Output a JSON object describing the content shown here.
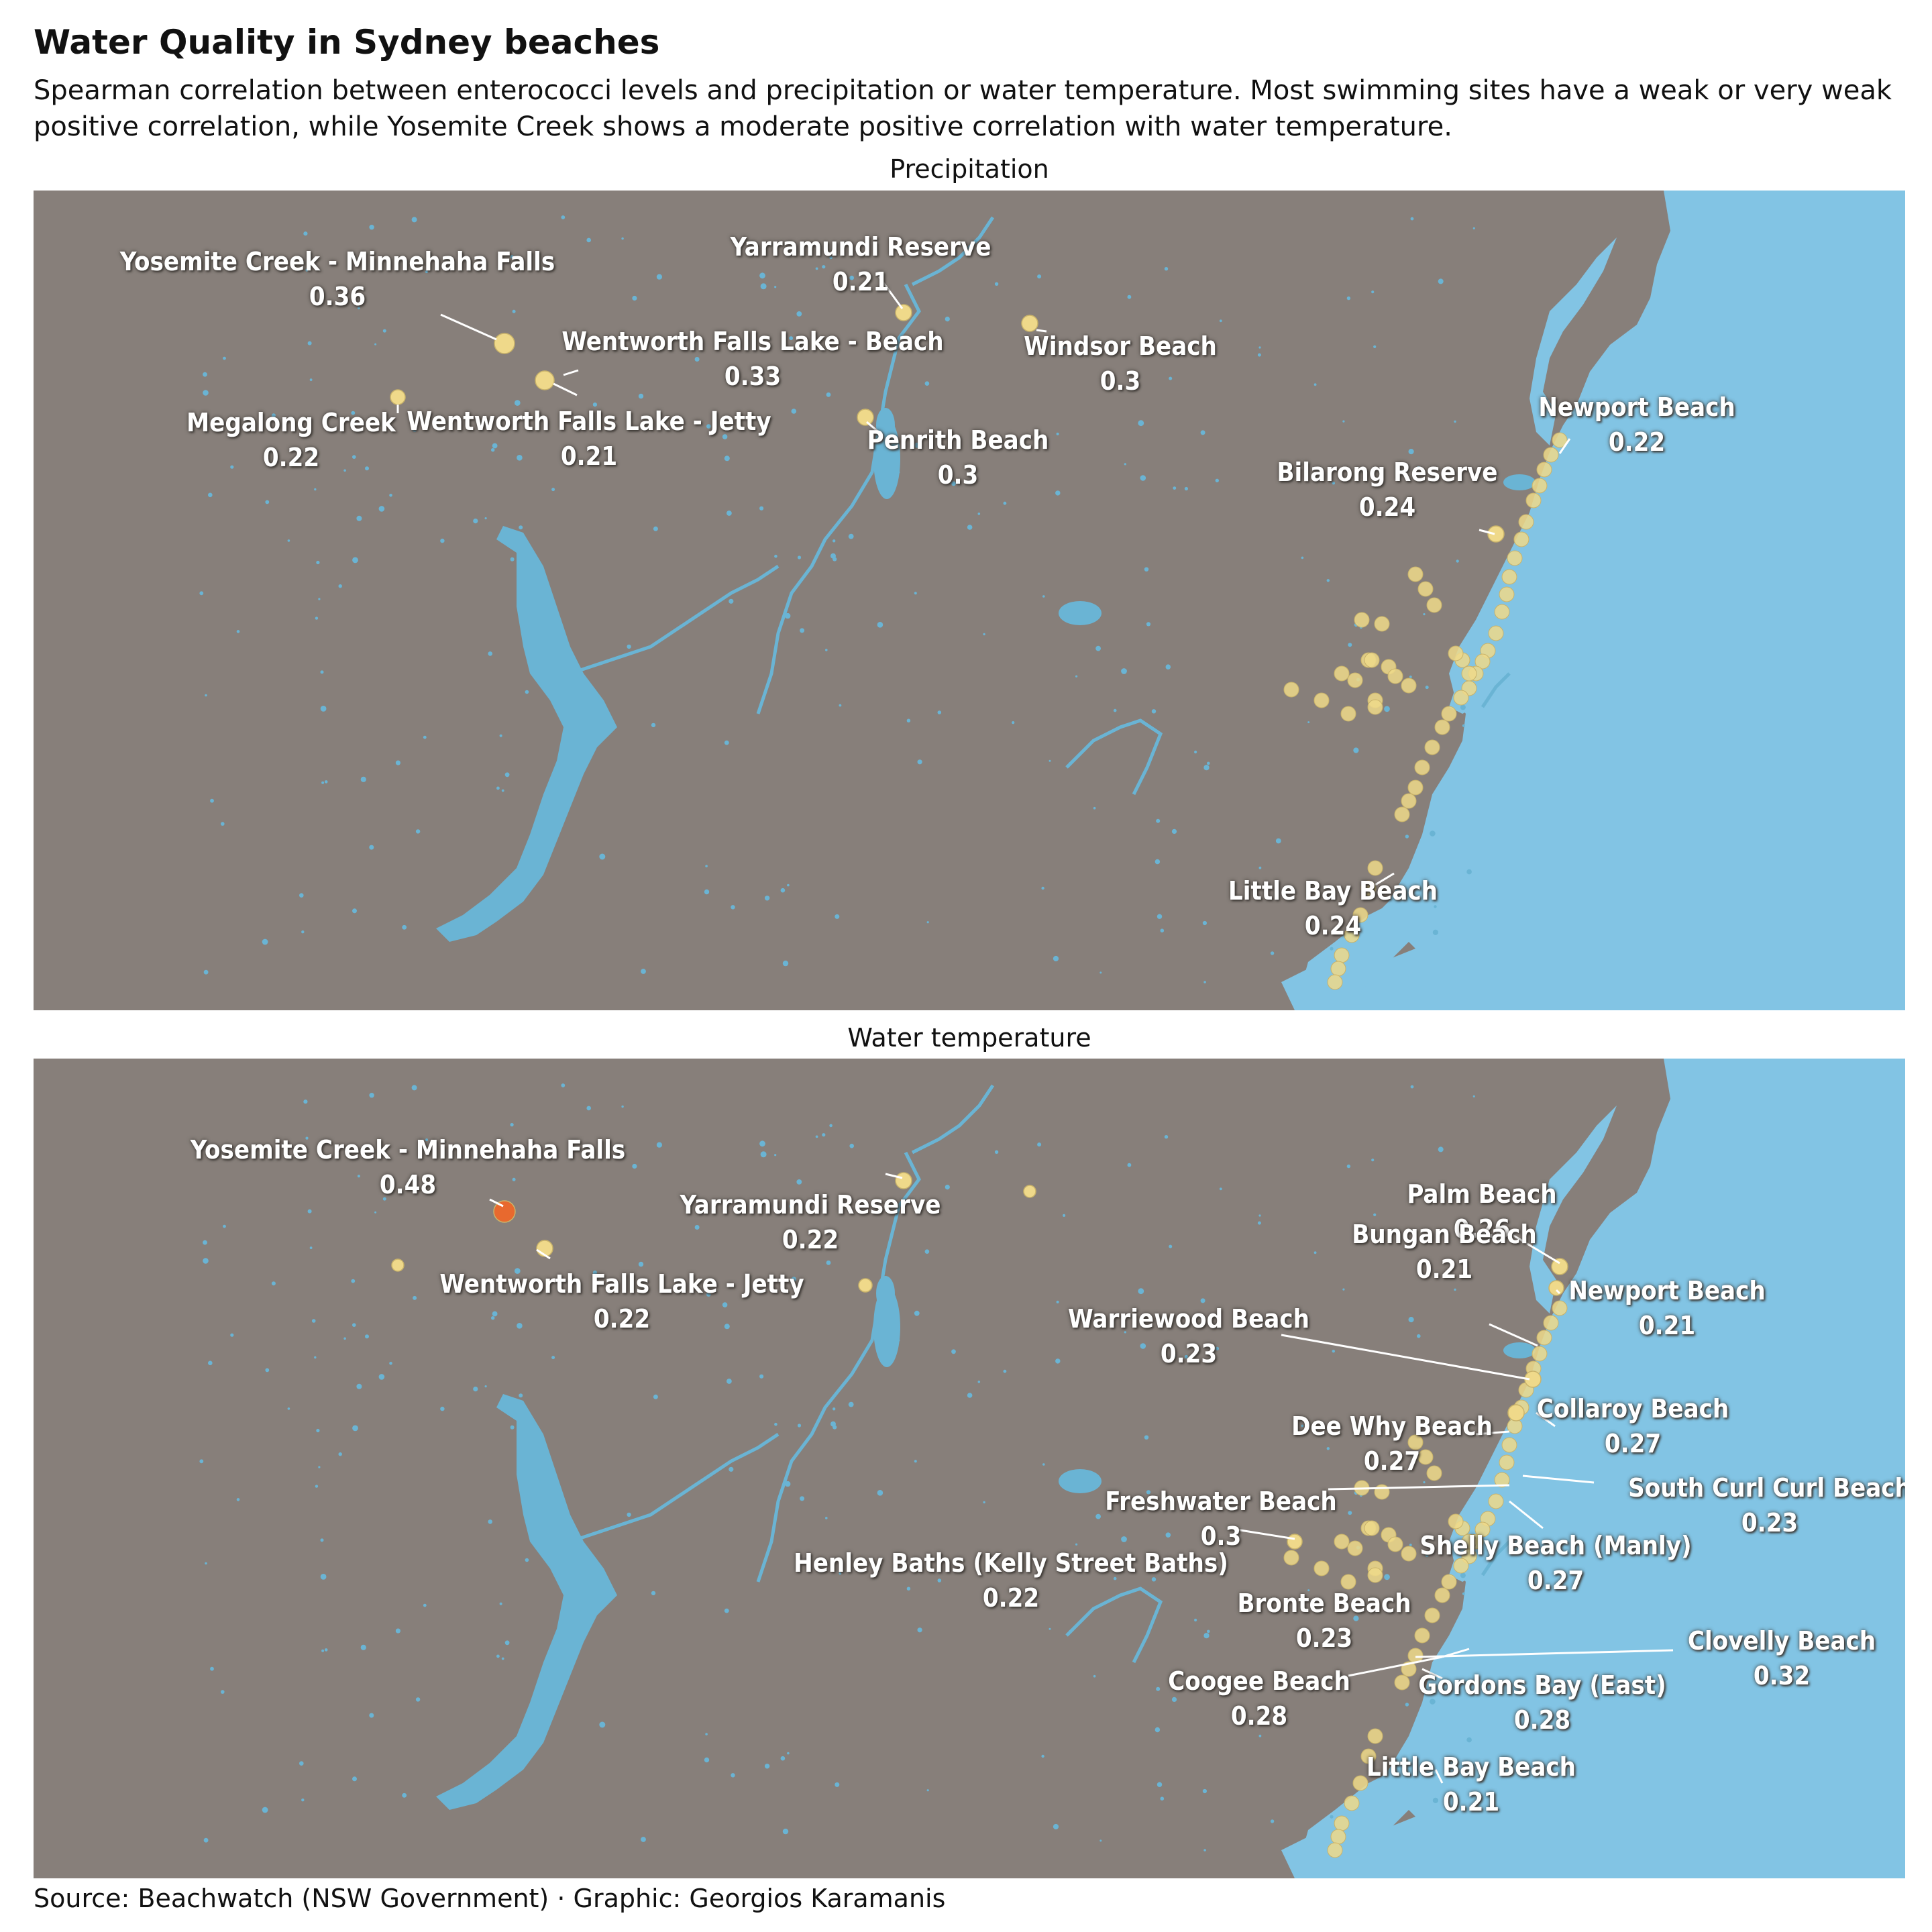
{
  "title": "Water Quality in Sydney beaches",
  "subtitle": "Spearman correlation between enterococci levels and precipitation or water temperature. Most swimming sites have a weak or very weak positive correlation, while Yosemite Creek shows a moderate positive correlation with water temperature.",
  "source": "Source: Beachwatch (NSW Government) · Graphic: Georgios Karamanis",
  "colors": {
    "land": "#877f7a",
    "water": "#82c4e4",
    "river": "#6ab4d4",
    "site": "#efd98a",
    "strong_site": "#e8692e",
    "label": "#ffffff"
  },
  "panels": [
    {
      "id": "precipitation",
      "title": "Precipitation",
      "labels": [
        {
          "name": "Yosemite Creek - Minnehaha Falls",
          "value": "0.36"
        },
        {
          "name": "Yarramundi Reserve",
          "value": "0.21"
        },
        {
          "name": "Wentworth Falls Lake - Beach",
          "value": "0.33"
        },
        {
          "name": "Windsor Beach",
          "value": "0.3"
        },
        {
          "name": "Megalong Creek",
          "value": "0.22"
        },
        {
          "name": "Wentworth Falls Lake - Jetty",
          "value": "0.21"
        },
        {
          "name": "Penrith Beach",
          "value": "0.3"
        },
        {
          "name": "Newport Beach",
          "value": "0.22"
        },
        {
          "name": "Bilarong Reserve",
          "value": "0.24"
        },
        {
          "name": "Little Bay Beach",
          "value": "0.24"
        }
      ]
    },
    {
      "id": "water-temperature",
      "title": "Water temperature",
      "labels": [
        {
          "name": "Yosemite Creek - Minnehaha Falls",
          "value": "0.48"
        },
        {
          "name": "Yarramundi Reserve",
          "value": "0.22"
        },
        {
          "name": "Wentworth Falls Lake - Jetty",
          "value": "0.22"
        },
        {
          "name": "Palm Beach",
          "value": "0.26"
        },
        {
          "name": "Bungan Beach",
          "value": "0.21"
        },
        {
          "name": "Newport Beach",
          "value": "0.21"
        },
        {
          "name": "Warriewood Beach",
          "value": "0.23"
        },
        {
          "name": "Collaroy Beach",
          "value": "0.27"
        },
        {
          "name": "Dee Why Beach",
          "value": "0.27"
        },
        {
          "name": "South Curl Curl Beach",
          "value": "0.23"
        },
        {
          "name": "Freshwater Beach",
          "value": "0.3"
        },
        {
          "name": "Shelly Beach (Manly)",
          "value": "0.27"
        },
        {
          "name": "Henley Baths (Kelly Street Baths)",
          "value": "0.22"
        },
        {
          "name": "Bronte Beach",
          "value": "0.23"
        },
        {
          "name": "Clovelly Beach",
          "value": "0.32"
        },
        {
          "name": "Coogee Beach",
          "value": "0.28"
        },
        {
          "name": "Gordons Bay (East)",
          "value": "0.28"
        },
        {
          "name": "Little Bay Beach",
          "value": "0.21"
        }
      ]
    }
  ]
}
